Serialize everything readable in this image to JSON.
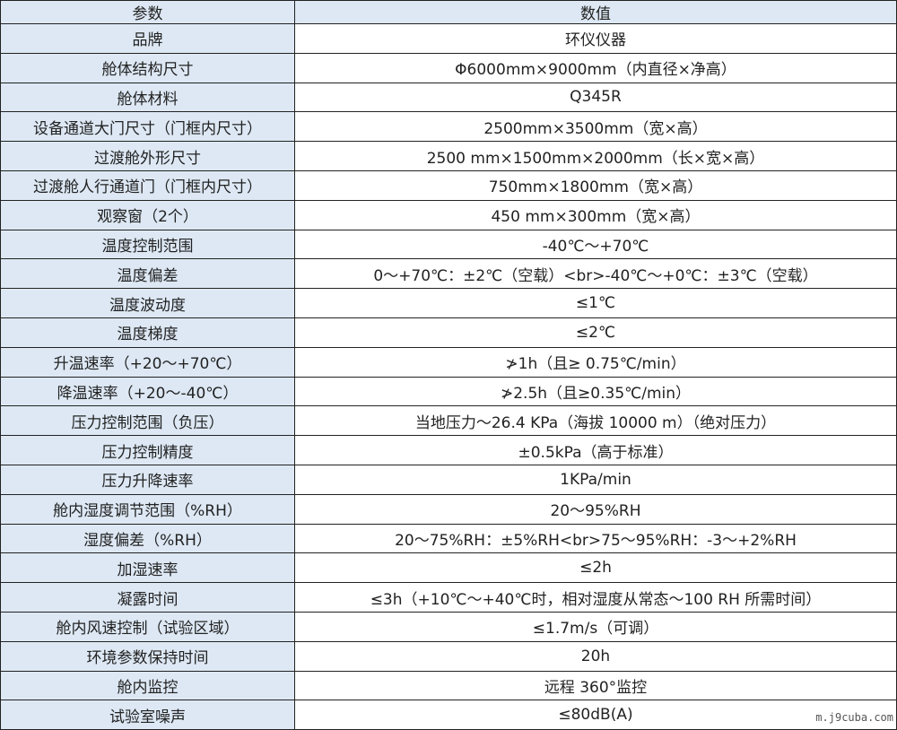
{
  "table": {
    "header": [
      "参数",
      "数值"
    ],
    "rows": [
      [
        "品牌",
        "环仪仪器"
      ],
      [
        "舱体结构尺寸",
        "Φ6000mm×9000mm（内直径×净高）"
      ],
      [
        "舱体材料",
        "Q345R"
      ],
      [
        "设备通道大门尺寸（门框内尺寸）",
        "2500mm×3500mm（宽×高）"
      ],
      [
        "过渡舱外形尺寸",
        "2500 mm×1500mm×2000mm（长×宽×高）"
      ],
      [
        "过渡舱人行通道门（门框内尺寸）",
        "750mm×1800mm（宽×高）"
      ],
      [
        "观察窗（2个）",
        "450 mm×300mm（宽×高）"
      ],
      [
        "温度控制范围",
        "-40℃～+70℃"
      ],
      [
        "温度偏差",
        "0～+70℃：±2℃（空载）<br>-40℃～+0℃：±3℃（空载）"
      ],
      [
        "温度波动度",
        "≤1℃"
      ],
      [
        "温度梯度",
        "≤2℃"
      ],
      [
        "升温速率（+20～+70℃）",
        "≯1h（且≥ 0.75℃/min）"
      ],
      [
        "降温速率（+20～-40℃）",
        "≯2.5h（且≥0.35℃/min）"
      ],
      [
        "压力控制范围（负压）",
        "当地压力～26.4 KPa（海拔 10000 m）（绝对压力）"
      ],
      [
        "压力控制精度",
        "±0.5kPa（高于标准）"
      ],
      [
        "压力升降速率",
        "1KPa/min"
      ],
      [
        "舱内湿度调节范围（%RH）",
        "20～95%RH"
      ],
      [
        "湿度偏差（%RH）",
        "20～75%RH：±5%RH<br>75～95%RH：-3～+2%RH"
      ],
      [
        "加湿速率",
        "≤2h"
      ],
      [
        "凝露时间",
        "≤3h（+10℃～+40℃时，相对湿度从常态～100 RH 所需时间）"
      ],
      [
        "舱内风速控制（试验区域）",
        "≤1.7m/s（可调）"
      ],
      [
        "环境参数保持时间",
        "20h"
      ],
      [
        "舱内监控",
        "远程 360°监控"
      ],
      [
        "试验室噪声",
        "≤80dB(A)"
      ]
    ]
  },
  "watermark": "m.j9cuba.com"
}
